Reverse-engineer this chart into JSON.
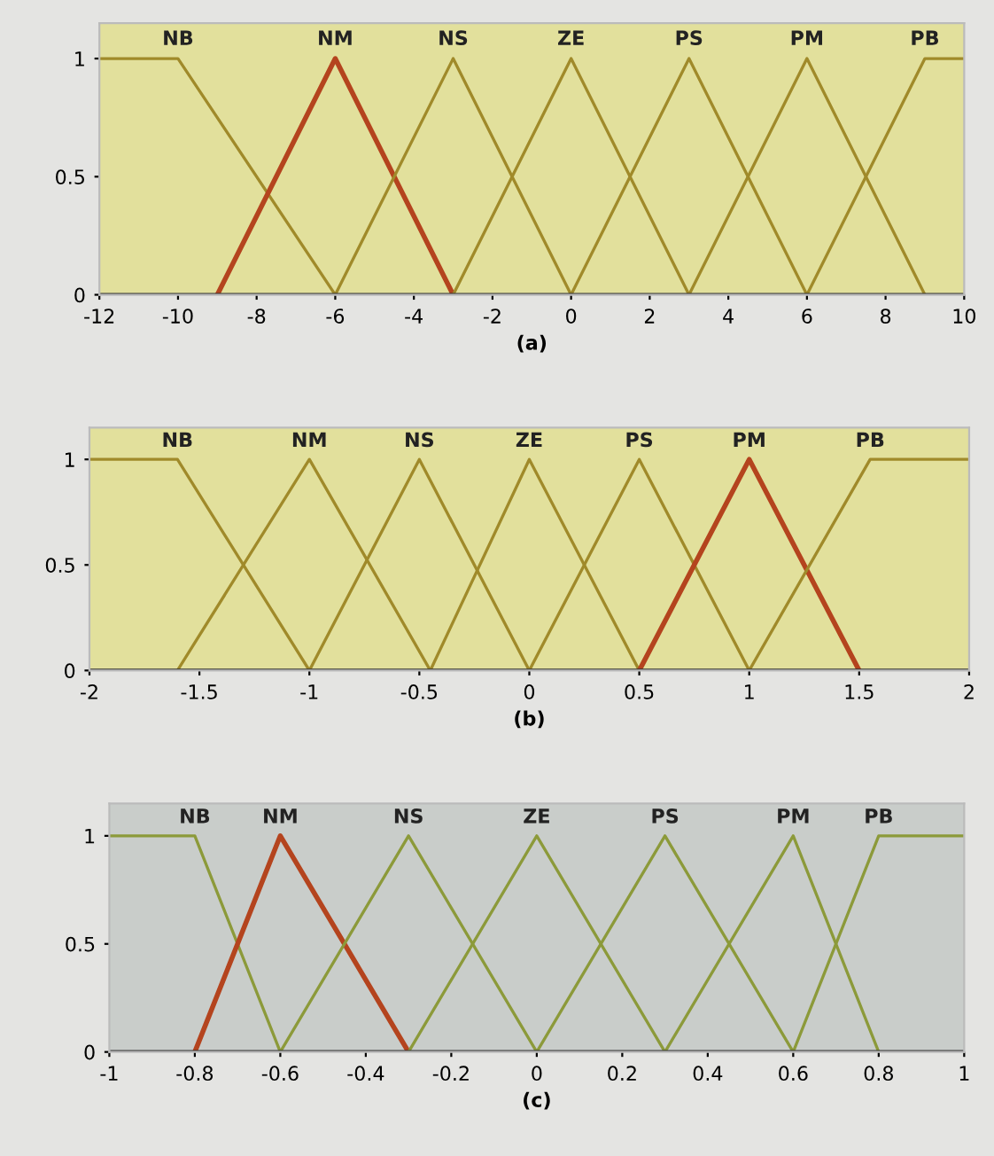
{
  "chart_data": [
    {
      "type": "line",
      "xlabel": "(a)",
      "xlim": [
        -12,
        10
      ],
      "xticks": [
        -12,
        -10,
        -8,
        -6,
        -4,
        -2,
        0,
        2,
        4,
        6,
        8,
        10
      ],
      "ylim": [
        0,
        1.15
      ],
      "yticks": [
        0,
        0.5,
        1
      ],
      "grid": false,
      "legend": false,
      "marker": "none",
      "line_style": "solid",
      "series": [
        {
          "name": "NB",
          "color": "#a08a2a",
          "x": [
            -12,
            -10,
            -6
          ],
          "values": [
            1,
            1,
            0
          ]
        },
        {
          "name": "NM",
          "color": "#b4441e",
          "x": [
            -9,
            -6,
            -3
          ],
          "values": [
            0,
            1,
            0
          ]
        },
        {
          "name": "NS",
          "color": "#a08a2a",
          "x": [
            -6,
            -3,
            0
          ],
          "values": [
            0,
            1,
            0
          ]
        },
        {
          "name": "ZE",
          "color": "#a08a2a",
          "x": [
            -3,
            0,
            3
          ],
          "values": [
            0,
            1,
            0
          ]
        },
        {
          "name": "PS",
          "color": "#a08a2a",
          "x": [
            0,
            3,
            6
          ],
          "values": [
            0,
            1,
            0
          ]
        },
        {
          "name": "PM",
          "color": "#a08a2a",
          "x": [
            3,
            6,
            9
          ],
          "values": [
            0,
            1,
            0
          ]
        },
        {
          "name": "PB",
          "color": "#a08a2a",
          "x": [
            6,
            9,
            10
          ],
          "values": [
            0,
            1,
            1
          ]
        }
      ]
    },
    {
      "type": "line",
      "xlabel": "(b)",
      "xlim": [
        -2,
        2
      ],
      "xticks": [
        -2,
        -1.5,
        -1,
        -0.5,
        0,
        0.5,
        1,
        1.5,
        2
      ],
      "ylim": [
        0,
        1.15
      ],
      "yticks": [
        0,
        0.5,
        1
      ],
      "grid": false,
      "legend": false,
      "marker": "none",
      "line_style": "solid",
      "series": [
        {
          "name": "NB",
          "color": "#a08a2a",
          "x": [
            -2,
            -1.6,
            -1
          ],
          "values": [
            1,
            1,
            0
          ]
        },
        {
          "name": "NM",
          "color": "#a08a2a",
          "x": [
            -1.6,
            -1,
            -0.45
          ],
          "values": [
            0,
            1,
            0
          ]
        },
        {
          "name": "NS",
          "color": "#a08a2a",
          "x": [
            -1,
            -0.5,
            0
          ],
          "values": [
            0,
            1,
            0
          ]
        },
        {
          "name": "ZE",
          "color": "#a08a2a",
          "x": [
            -0.45,
            0,
            0.5
          ],
          "values": [
            0,
            1,
            0
          ]
        },
        {
          "name": "PS",
          "color": "#a08a2a",
          "x": [
            0,
            0.5,
            1
          ],
          "values": [
            0,
            1,
            0
          ]
        },
        {
          "name": "PM",
          "color": "#b4441e",
          "x": [
            0.5,
            1,
            1.5
          ],
          "values": [
            0,
            1,
            0
          ]
        },
        {
          "name": "PB",
          "color": "#a08a2a",
          "x": [
            1,
            1.55,
            2
          ],
          "values": [
            0,
            1,
            1
          ]
        }
      ]
    },
    {
      "type": "line",
      "xlabel": "(c)",
      "xlim": [
        -1,
        1
      ],
      "xticks": [
        -1,
        -0.8,
        -0.6,
        -0.4,
        -0.2,
        0,
        0.2,
        0.4,
        0.6,
        0.8,
        1
      ],
      "ylim": [
        0,
        1.15
      ],
      "yticks": [
        0,
        0.5,
        1
      ],
      "grid": false,
      "legend": false,
      "marker": "none",
      "line_style": "solid",
      "series": [
        {
          "name": "NB",
          "color": "#8c9a3a",
          "x": [
            -1,
            -0.8,
            -0.6
          ],
          "values": [
            1,
            1,
            0
          ]
        },
        {
          "name": "NM",
          "color": "#b4441e",
          "x": [
            -0.8,
            -0.6,
            -0.3
          ],
          "values": [
            0,
            1,
            0
          ]
        },
        {
          "name": "NS",
          "color": "#8c9a3a",
          "x": [
            -0.6,
            -0.3,
            0
          ],
          "values": [
            0,
            1,
            0
          ]
        },
        {
          "name": "ZE",
          "color": "#8c9a3a",
          "x": [
            -0.3,
            0,
            0.3
          ],
          "values": [
            0,
            1,
            0
          ]
        },
        {
          "name": "PS",
          "color": "#8c9a3a",
          "x": [
            0,
            0.3,
            0.6
          ],
          "values": [
            0,
            1,
            0
          ]
        },
        {
          "name": "PM",
          "color": "#8c9a3a",
          "x": [
            0.3,
            0.6,
            0.8
          ],
          "values": [
            0,
            1,
            0
          ]
        },
        {
          "name": "PB",
          "color": "#8c9a3a",
          "x": [
            0.6,
            0.8,
            1
          ],
          "values": [
            0,
            1,
            1
          ]
        }
      ]
    }
  ]
}
